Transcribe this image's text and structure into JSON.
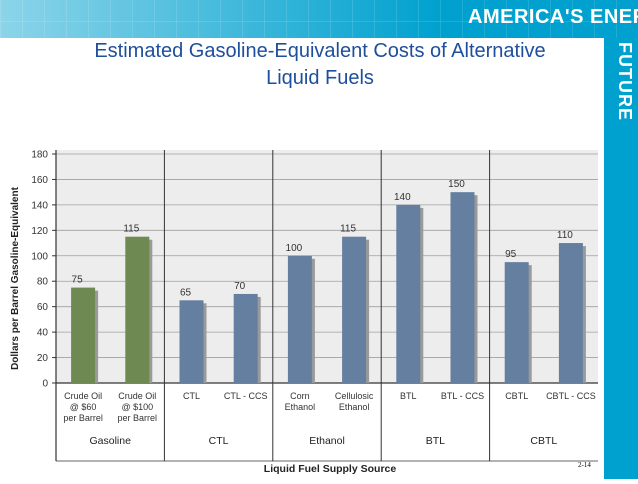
{
  "banner": {
    "title": "AMERICA'S ENERGY",
    "side_text": "FUTURE"
  },
  "slide": {
    "title_line1": "Estimated Gasoline-Equivalent Costs of Alternative",
    "title_line2": "Liquid Fuels",
    "page_number": "2-14"
  },
  "colors": {
    "accent": "#00a1cf",
    "title": "#1e4f9c",
    "gasoline_bar": "#6e8a52",
    "alt_bar": "#647f9f"
  },
  "chart_data": {
    "type": "bar",
    "ylabel": "Dollars per Barrel Gasoline-Equivalent",
    "xlabel": "Liquid Fuel Supply Source",
    "ylim": [
      0,
      180
    ],
    "yticks": [
      0,
      20,
      40,
      60,
      80,
      100,
      120,
      140,
      160,
      180
    ],
    "categories": [
      [
        "Crude Oil",
        "@ $60",
        "per Barrel"
      ],
      [
        "Crude Oil",
        "@ $100",
        "per Barrel"
      ],
      [
        "CTL"
      ],
      [
        "CTL - CCS"
      ],
      [
        "Corn",
        "Ethanol"
      ],
      [
        "Cellulosic",
        "Ethanol"
      ],
      [
        "BTL"
      ],
      [
        "BTL - CCS"
      ],
      [
        "CBTL"
      ],
      [
        "CBTL - CCS"
      ]
    ],
    "values": [
      75,
      115,
      65,
      70,
      100,
      115,
      140,
      150,
      95,
      110
    ],
    "data_labels": [
      "75",
      "115",
      "65",
      "70",
      "100",
      "115",
      "140",
      "150",
      "95",
      "110"
    ],
    "groups": [
      {
        "name": "Gasoline",
        "count": 2
      },
      {
        "name": "CTL",
        "count": 2
      },
      {
        "name": "Ethanol",
        "count": 2
      },
      {
        "name": "BTL",
        "count": 2
      },
      {
        "name": "CBTL",
        "count": 2
      }
    ],
    "gasoline_bars": 2
  }
}
